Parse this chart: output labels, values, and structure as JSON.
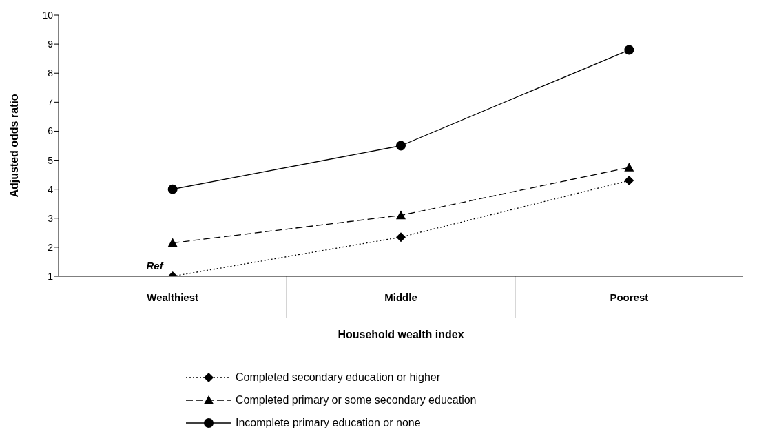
{
  "chart_data": {
    "type": "line",
    "xlabel": "Household wealth index",
    "ylabel": "Adjusted odds ratio",
    "categories": [
      "Wealthiest",
      "Middle",
      "Poorest"
    ],
    "series": [
      {
        "name": "Completed secondary education or higher",
        "color": "#000000",
        "values": [
          1.0,
          2.35,
          4.3
        ],
        "marker": "diamond",
        "line_style": "dotted"
      },
      {
        "name": "Completed primary or some secondary education",
        "color": "#000000",
        "values": [
          2.15,
          3.1,
          4.75
        ],
        "marker": "triangle",
        "line_style": "dashed"
      },
      {
        "name": "Incomplete primary education or none",
        "color": "#000000",
        "values": [
          4.0,
          5.5,
          8.8
        ],
        "marker": "circle",
        "line_style": "solid"
      }
    ],
    "ylim": [
      1,
      10
    ],
    "yticks": [
      1,
      2,
      3,
      4,
      5,
      6,
      7,
      8,
      9,
      10
    ],
    "grid": false,
    "legend": "bottom",
    "annotations": [
      {
        "text": "Ref",
        "x": "Wealthiest",
        "y": 1
      }
    ]
  }
}
